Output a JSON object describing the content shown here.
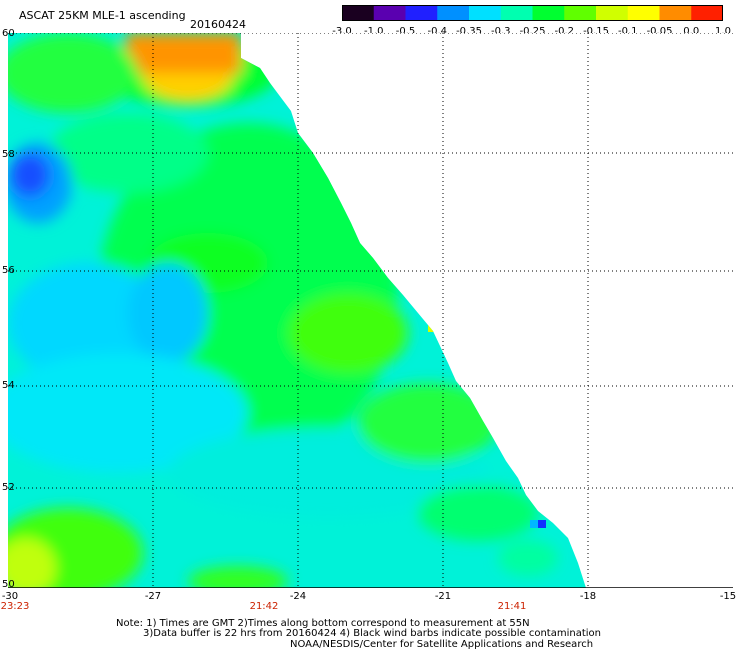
{
  "header": {
    "title": "ASCAT 25KM MLE-1 ascending",
    "date": "20160424"
  },
  "colorbar": {
    "labels": [
      "-3.0",
      "-1.0",
      "-0.5",
      "-0.4",
      "-0.35",
      "-0.3",
      "-0.25",
      "-0.2",
      "-0.15",
      "-0.1",
      "-0.05",
      "0.0",
      "1.0"
    ],
    "colors": [
      "#1a0020",
      "#5a00b0",
      "#2020ff",
      "#0090ff",
      "#00e0ff",
      "#00ffb0",
      "#00ff30",
      "#60ff00",
      "#d0ff00",
      "#ffff00",
      "#ff8c00",
      "#ff2000"
    ]
  },
  "map": {
    "lat_labels": [
      "60",
      "58",
      "56",
      "54",
      "52",
      "50"
    ],
    "lon_labels": [
      "-30",
      "-27",
      "-24",
      "-21",
      "-18",
      "-15"
    ],
    "time_labels": [
      "23:23",
      "21:42",
      "21:41"
    ],
    "lon_range": [
      -30,
      -15
    ],
    "lat_range": [
      50,
      60
    ]
  },
  "notes": {
    "line1": "Note: 1) Times are GMT 2)Times along bottom correspond to measurement at 55N",
    "line2": "3)Data buffer is 22 hrs from 20160424 4) Black wind barbs indicate possible contamination",
    "line3": "NOAA/NESDIS/Center for Satellite Applications and Research"
  }
}
